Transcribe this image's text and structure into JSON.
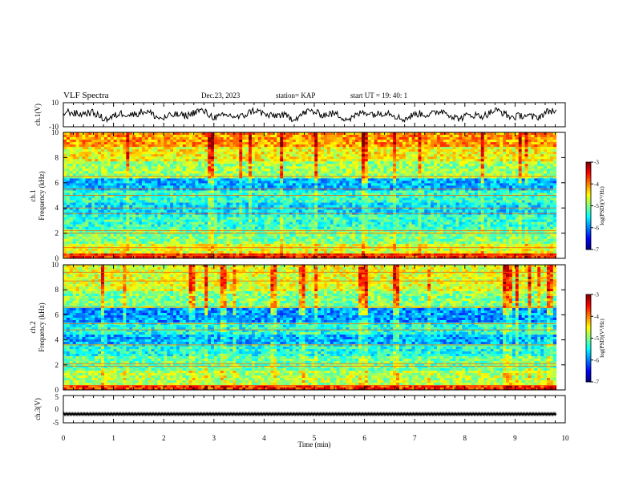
{
  "header": {
    "title": "VLF Spectra",
    "date": "Dec.23, 2023",
    "station": "station= KAP",
    "start_ut": "start  UT  =   19: 40: 1"
  },
  "chart_data": [
    {
      "type": "line",
      "name": "ch1-waveform",
      "ylabel": "ch.1(V)",
      "ylim": [
        -10,
        10
      ],
      "yticks": [
        "10",
        "-10"
      ],
      "x_range_min": [
        0,
        9.82
      ],
      "xlim": [
        0,
        10
      ]
    },
    {
      "type": "heatmap",
      "name": "ch1-spectrogram",
      "ylabel_line1": "ch.1",
      "ylabel_line2": "Frequency (kHz)",
      "ylim": [
        0,
        10
      ],
      "yticks": [
        "0",
        "2",
        "4",
        "6",
        "8",
        "10"
      ],
      "x_range_min": [
        0,
        9.82
      ],
      "xlim": [
        0,
        10
      ],
      "bands_khz": [
        {
          "f_lo": 0,
          "f_hi": 0.4,
          "level": -3.6
        },
        {
          "f_lo": 0.4,
          "f_hi": 1.2,
          "level": -4.6
        },
        {
          "f_lo": 1.2,
          "f_hi": 2.3,
          "level": -5.0
        },
        {
          "f_lo": 2.3,
          "f_hi": 3.5,
          "level": -5.3
        },
        {
          "f_lo": 3.5,
          "f_hi": 4.4,
          "level": -5.6
        },
        {
          "f_lo": 4.4,
          "f_hi": 5.4,
          "level": -5.3
        },
        {
          "f_lo": 5.4,
          "f_hi": 6.4,
          "level": -5.8
        },
        {
          "f_lo": 6.4,
          "f_hi": 7.6,
          "level": -4.9
        },
        {
          "f_lo": 7.6,
          "f_hi": 8.8,
          "level": -4.5
        },
        {
          "f_lo": 8.8,
          "f_hi": 10,
          "level": -4.1
        }
      ],
      "lines_khz": [
        0.25,
        0.85,
        2.0,
        2.2,
        3.55,
        4.0,
        5.0,
        5.5,
        6.5
      ]
    },
    {
      "type": "heatmap",
      "name": "ch2-spectrogram",
      "ylabel_line1": "ch.2",
      "ylabel_line2": "Frequency (kHz)",
      "ylim": [
        0,
        10
      ],
      "yticks": [
        "0",
        "2",
        "4",
        "6",
        "8",
        "10"
      ],
      "x_range_min": [
        0,
        9.82
      ],
      "xlim": [
        0,
        10
      ],
      "bands_khz": [
        {
          "f_lo": 0,
          "f_hi": 0.4,
          "level": -3.7
        },
        {
          "f_lo": 0.4,
          "f_hi": 1.6,
          "level": -4.8
        },
        {
          "f_lo": 1.6,
          "f_hi": 2.6,
          "level": -5.1
        },
        {
          "f_lo": 2.6,
          "f_hi": 3.6,
          "level": -5.4
        },
        {
          "f_lo": 3.6,
          "f_hi": 4.4,
          "level": -5.8
        },
        {
          "f_lo": 4.4,
          "f_hi": 5.4,
          "level": -5.4
        },
        {
          "f_lo": 5.4,
          "f_hi": 6.6,
          "level": -5.9
        },
        {
          "f_lo": 6.6,
          "f_hi": 7.8,
          "level": -5.0
        },
        {
          "f_lo": 7.8,
          "f_hi": 10,
          "level": -4.6
        }
      ],
      "lines_khz": [
        0.35,
        1.9,
        2.1,
        3.6,
        4.8,
        5.3,
        6.6,
        8.7,
        9.4
      ]
    },
    {
      "type": "line",
      "name": "ch3-waveform",
      "ylabel": "ch.3(V)",
      "ylim": [
        -5,
        5
      ],
      "yticks": [
        "5",
        "0",
        "-5"
      ],
      "level_v": -1.8,
      "x_range_min": [
        0,
        9.82
      ],
      "xlim": [
        0,
        10
      ]
    }
  ],
  "x_axis": {
    "label": "Time  (min)",
    "ticks": [
      "0",
      "1",
      "2",
      "3",
      "4",
      "5",
      "6",
      "7",
      "8",
      "9",
      "10"
    ]
  },
  "colorbar": {
    "label": "log(PSD)(V²/Hz)",
    "ticks": [
      "-3",
      "-4",
      "-5",
      "-6",
      "-7"
    ],
    "range": [
      -7,
      -3
    ],
    "colors": [
      "#000080",
      "#0000ff",
      "#0080ff",
      "#00ffff",
      "#80ff80",
      "#ffff00",
      "#ff8000",
      "#ff0000",
      "#800000"
    ]
  }
}
